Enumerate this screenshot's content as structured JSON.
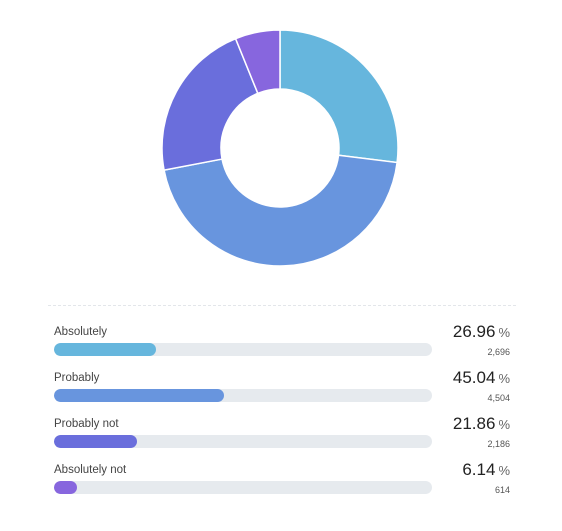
{
  "chart_data": {
    "type": "pie",
    "title": "",
    "categories": [
      "Absolutely",
      "Probably",
      "Probably not",
      "Absolutely not"
    ],
    "values": [
      26.96,
      45.04,
      21.86,
      6.14
    ],
    "counts": [
      "2,696",
      "4,504",
      "2,186",
      "614"
    ],
    "value_texts": [
      "26.96",
      "45.04",
      "21.86",
      "6.14"
    ],
    "unit": "%",
    "colors": [
      "#66b6dd",
      "#6895de",
      "#6a6edc",
      "#8766de"
    ],
    "donut": true,
    "legend": "bottom"
  }
}
